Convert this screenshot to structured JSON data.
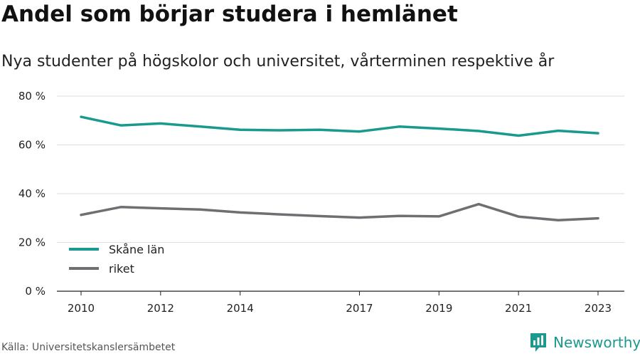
{
  "chart_data": {
    "type": "line",
    "title": "Andel som börjar studera i hemlänet",
    "subtitle": "Nya studenter på högskolor och universitet, vårterminen respektive år",
    "x": [
      2010,
      2011,
      2012,
      2013,
      2014,
      2015,
      2016,
      2017,
      2018,
      2019,
      2020,
      2021,
      2022,
      2023
    ],
    "xticks": [
      2010,
      2012,
      2014,
      2017,
      2019,
      2021,
      2023
    ],
    "yticks": [
      0,
      20,
      40,
      60,
      80
    ],
    "ytick_suffix": " %",
    "ylim": [
      0,
      80
    ],
    "grid": true,
    "legend_position": "bottom-left",
    "series": [
      {
        "name": "Skåne län",
        "color": "#1a9a8e",
        "values": [
          71.5,
          68.0,
          68.8,
          67.5,
          66.2,
          66.0,
          66.2,
          65.5,
          67.5,
          66.7,
          65.7,
          63.8,
          65.8,
          64.8
        ]
      },
      {
        "name": "riket",
        "color": "#6e6e73",
        "values": [
          31.3,
          34.5,
          34.0,
          33.5,
          32.3,
          31.5,
          30.8,
          30.2,
          30.9,
          30.7,
          35.7,
          30.6,
          29.1,
          29.9
        ]
      }
    ]
  },
  "source": "Källa: Universitetskanslersämbetet",
  "brand": {
    "name": "Newsworthy",
    "logo_icon": "bar-chart-icon",
    "color": "#1a9a8e"
  }
}
